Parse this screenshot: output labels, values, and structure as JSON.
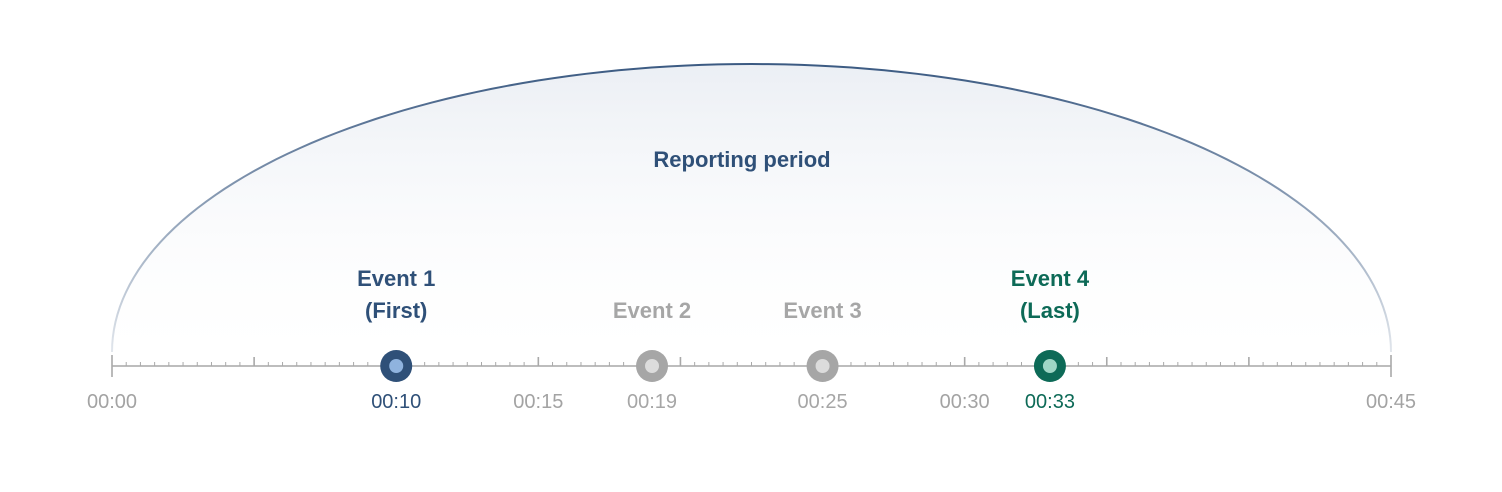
{
  "title": "Reporting period",
  "axis": {
    "start_minute": 0,
    "end_minute": 45,
    "major_tick_every_minutes": 5,
    "minor_ticks_per_major": 9,
    "labels": [
      {
        "minute": 0,
        "text": "00:00"
      },
      {
        "minute": 15,
        "text": "00:15"
      },
      {
        "minute": 30,
        "text": "00:30"
      },
      {
        "minute": 45,
        "text": "00:45"
      }
    ]
  },
  "events": [
    {
      "name_lines": [
        "Event 1",
        "(First)"
      ],
      "time": "00:10",
      "minute": 10,
      "state": "first"
    },
    {
      "name_lines": [
        "Event 2"
      ],
      "time": "00:19",
      "minute": 19,
      "state": "inactive"
    },
    {
      "name_lines": [
        "Event 3"
      ],
      "time": "00:25",
      "minute": 25,
      "state": "inactive"
    },
    {
      "name_lines": [
        "Event 4",
        "(Last)"
      ],
      "time": "00:33",
      "minute": 33,
      "state": "last"
    }
  ],
  "colors": {
    "arc_stroke": "#3b5a82",
    "title": "#2f5078",
    "axis_line": "#bdbdbd",
    "tick": "#a9a9a9",
    "axis_label": "#a3a3a3",
    "first": "#2f5078",
    "first_inner": "#8fb3de",
    "inactive": "#a6a6a6",
    "inactive_inner": "#dcdcdc",
    "last": "#0d6a57",
    "last_inner": "#9fd6c6"
  }
}
